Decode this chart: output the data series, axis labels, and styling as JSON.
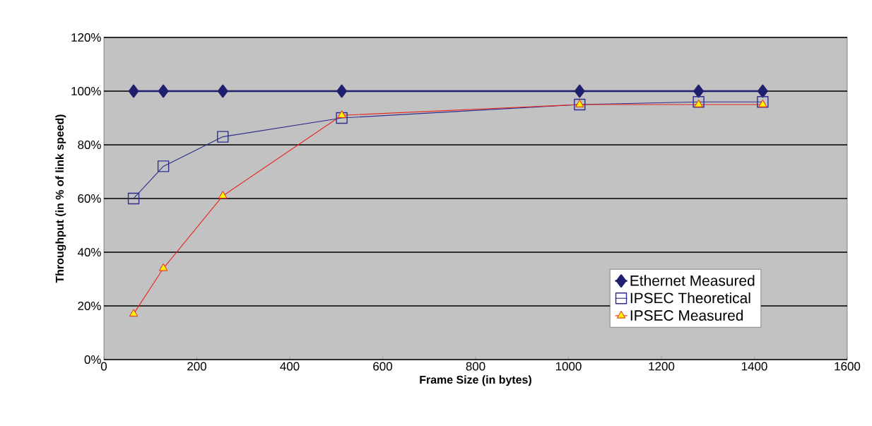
{
  "chart_data": {
    "type": "line",
    "xlabel": "Frame Size (in bytes)",
    "ylabel": "Throughput (in % of link speed)",
    "x": [
      64,
      128,
      256,
      512,
      1024,
      1280,
      1418
    ],
    "series": [
      {
        "name": "Ethernet Measured",
        "color": "#1f1f6e",
        "marker": "diamond",
        "values": [
          100,
          100,
          100,
          100,
          100,
          100,
          100
        ]
      },
      {
        "name": "IPSEC Theoretical",
        "color": "#2e2e8c",
        "marker": "square",
        "values": [
          60,
          72,
          83,
          90,
          95,
          96,
          96
        ]
      },
      {
        "name": "IPSEC Measured",
        "color": "#e8261e",
        "marker": "triangle",
        "values": [
          17,
          34,
          61,
          91,
          95,
          95,
          95
        ]
      }
    ],
    "xlim": [
      0,
      1600
    ],
    "xticks": [
      0,
      200,
      400,
      600,
      800,
      1000,
      1200,
      1400,
      1600
    ],
    "ylim": [
      0,
      120
    ],
    "yticks": [
      {
        "value": 0,
        "label": "0%"
      },
      {
        "value": 20,
        "label": "20%"
      },
      {
        "value": 40,
        "label": "40%"
      },
      {
        "value": 60,
        "label": "60%"
      },
      {
        "value": 80,
        "label": "80%"
      },
      {
        "value": 100,
        "label": "100%"
      },
      {
        "value": 120,
        "label": "120%"
      }
    ],
    "grid": "y",
    "legend": "bottom right",
    "line_style": "solid"
  }
}
